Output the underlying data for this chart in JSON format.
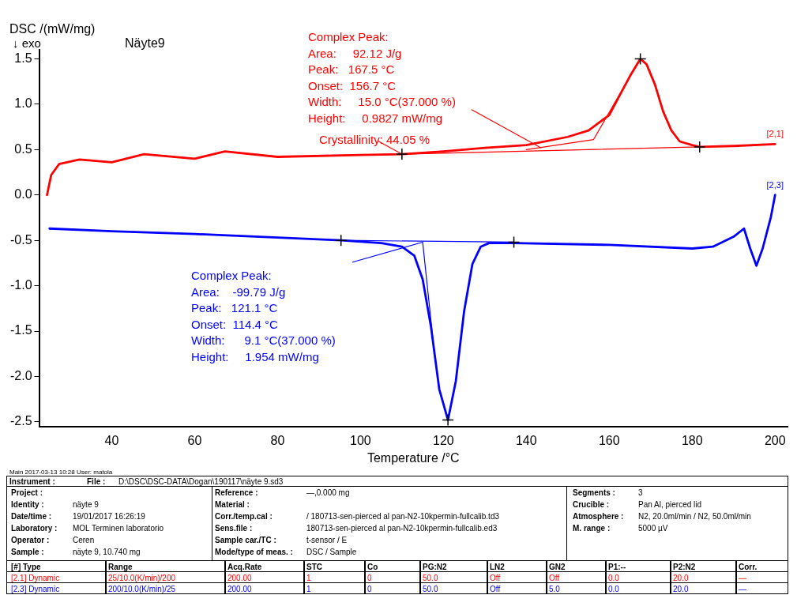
{
  "chart_data": {
    "type": "line",
    "title": "Näyte9",
    "xlabel": "Temperature /°C",
    "ylabel": "DSC /(mW/mg)",
    "xlim": [
      22.5,
      203
    ],
    "xticks": [
      40,
      60,
      80,
      100,
      120,
      140,
      160,
      180,
      200
    ],
    "ylim": [
      -2.55,
      1.6
    ],
    "yticks": [
      -2.5,
      {
        "value": -2,
        "label": "-2.0"
      },
      -1.5,
      {
        "value": -1,
        "label": "-1.0"
      },
      -0.5,
      {
        "value": 0,
        "label": "0.0"
      },
      0.5,
      {
        "value": 1,
        "label": "1.0"
      },
      1.5
    ],
    "grid": false,
    "legend": false,
    "line_style": "solid",
    "series": [
      {
        "name": "[2,1]",
        "color": "#ff0000",
        "marker": "none",
        "x": [
          24.4,
          25.4,
          27.3,
          32.2,
          40,
          47.8,
          60,
          67.3,
          80,
          100,
          110,
          120,
          130,
          140,
          150,
          155,
          160,
          163,
          165,
          167.5,
          169,
          171,
          173,
          175,
          177,
          180,
          181.8,
          190,
          200
        ],
        "values": [
          0.0,
          0.22,
          0.34,
          0.39,
          0.36,
          0.45,
          0.4,
          0.48,
          0.42,
          0.44,
          0.45,
          0.48,
          0.52,
          0.55,
          0.64,
          0.71,
          0.88,
          1.14,
          1.31,
          1.5,
          1.44,
          1.22,
          0.92,
          0.71,
          0.59,
          0.55,
          0.53,
          0.54,
          0.56
        ]
      },
      {
        "name": "[2,3]",
        "color": "#0000ff",
        "marker": "none",
        "x": [
          25,
          40,
          60,
          80,
          95.3,
          105,
          110,
          113,
          115,
          117,
          119,
          121.1,
          123,
          125,
          127,
          129,
          131,
          137,
          160,
          180,
          185,
          190,
          192.5,
          194,
          195.5,
          197,
          199,
          200
        ],
        "values": [
          -0.37,
          -0.4,
          -0.43,
          -0.47,
          -0.5,
          -0.53,
          -0.57,
          -0.67,
          -0.93,
          -1.45,
          -2.14,
          -2.48,
          -2.05,
          -1.28,
          -0.76,
          -0.57,
          -0.53,
          -0.53,
          -0.55,
          -0.59,
          -0.57,
          -0.46,
          -0.37,
          -0.59,
          -0.78,
          -0.59,
          -0.24,
          0.0
        ]
      },
      {
        "color": "#ff0000",
        "type": "line",
        "marker": "none",
        "x": [
          110,
          181.8
        ],
        "values": [
          0.45,
          0.53
        ]
      },
      {
        "color": "#ff0000",
        "type": "line",
        "marker": "none",
        "x": [
          140,
          156.2,
          163
        ],
        "values": [
          0.5,
          0.61,
          1.15
        ]
      },
      {
        "color": "#ff0000",
        "type": "line",
        "marker": "none",
        "x": [
          126.8,
          143.5
        ],
        "values": [
          0.94,
          0.52
        ]
      },
      {
        "color": "#ff0000",
        "type": "line",
        "marker": "none",
        "x": [
          104.4,
          110
        ],
        "values": [
          0.59,
          0.45
        ]
      },
      {
        "color": "#0000ff",
        "type": "line",
        "marker": "none",
        "x": [
          95.3,
          137
        ],
        "values": [
          -0.5,
          -0.52
        ]
      },
      {
        "color": "#0000ff",
        "type": "line",
        "marker": "none",
        "x": [
          98.1,
          115,
          117.5
        ],
        "values": [
          -0.74,
          -0.52,
          -1.6
        ]
      },
      {
        "color": "#000000",
        "type": "scatter",
        "marker": "cross",
        "x": [
          110,
          167.5,
          181.8,
          95.3,
          121.1,
          137
        ],
        "values": [
          0.45,
          1.5,
          0.53,
          -0.5,
          -2.48,
          -0.52
        ]
      }
    ],
    "annotations": [
      "Complex Peak:\nArea:     92.12 J/g\nPeak:   167.5 °C\nOnset:  156.7 °C\nWidth:     15.0 °C(37.000 %)\nHeight:     0.9827 mW/mg",
      "Crystallinity: 44.05 %",
      "Complex Peak:\nArea:    -99.79 J/g\nPeak:   121.1 °C\nOnset:  114.4 °C\nWidth:      9.1 °C(37.000 %)\nHeight:     1.954 mW/mg",
      "↓ exo",
      "Main  2017-03-13 10:28  User: matola",
      "Instrument :",
      "File :",
      "D:\\DSC\\DSC-DATA\\Dogan\\190117\\näyte 9.sd3",
      "Project :",
      "Identity :",
      "näyte 9",
      "Date/time :",
      "19/01/2017 16:26:19",
      "Laboratory :",
      "MOL Terminen laboratorio",
      "Operator :",
      "Ceren",
      "Sample :",
      "näyte 9, 10.740 mg",
      "Reference :",
      "—,0.000 mg",
      "Material :",
      "Corr./temp.cal :",
      "/ 180713-sen-pierced al pan-N2-10kpermin-fullcalib.td3",
      "Sens.file :",
      "180713-sen-pierced al pan-N2-10kpermin-fullcalib.ed3",
      "Sample car./TC :",
      "t-sensor / E",
      "Mode/type of meas. :",
      "DSC / Sample",
      "Segments :",
      "3",
      "Crucible :",
      "Pan Al, pierced lid",
      "Atmosphere :",
      "N2, 20.0ml/min / N2, 50.0ml/min",
      "M. range :",
      "5000 µV",
      "[#] Type",
      "Range",
      "Acq.Rate",
      "STC",
      "Co",
      "PG:N2",
      "LN2",
      "GN2",
      "P1:--",
      "P2:N2",
      "Corr.",
      "[2.1] Dynamic",
      "25/10.0(K/min)/200",
      "200.00",
      "1",
      "0",
      "50.0",
      "Off",
      "Off",
      "0.0",
      "20.0",
      "—",
      "[2.3] Dynamic",
      "200/10.0(K/min)/25",
      "200.00",
      "1",
      "0",
      "50.0",
      "Off",
      "5.0",
      "0.0",
      "20.0",
      "—"
    ]
  }
}
